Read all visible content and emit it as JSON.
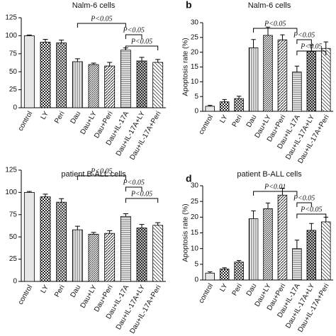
{
  "chart_data": [
    {
      "type": "bar",
      "title": "Nalm-6 cells",
      "categories": [
        "control",
        "LY",
        "Peri",
        "Dau",
        "Dau+LY",
        "Dau+Peri",
        "Dau+IL-17A",
        "Dau+IL-17A+LY",
        "Dau+IL-17A+Peri"
      ],
      "values": [
        100,
        91,
        90,
        64,
        60,
        58,
        80,
        65,
        63
      ],
      "errors": [
        1,
        4,
        4,
        4,
        2,
        5,
        3,
        5,
        4
      ],
      "ylim": [
        0,
        125
      ],
      "yticks": [
        0,
        25,
        50,
        75,
        100,
        125
      ],
      "annotations": [
        "P<0.05",
        "P<0.05",
        "P<0.05"
      ]
    },
    {
      "type": "bar",
      "title": "Nalm-6 cells",
      "panel": "b",
      "ylabel": "Apoptosis rate (%)",
      "categories": [
        "control",
        "LY",
        "Peri",
        "Dau",
        "Dau+LY",
        "Dau+Peri",
        "Dau+IL-17A",
        "Dau+IL-17A+LY",
        "Dau+IL-17A+Peri"
      ],
      "values": [
        1.7,
        3.2,
        4.3,
        21.5,
        25.7,
        24.2,
        13.3,
        20.3,
        21.3
      ],
      "errors": [
        0.3,
        0.8,
        0.8,
        2.8,
        2.8,
        1.7,
        2,
        2.2,
        2.2
      ],
      "ylim": [
        0,
        30
      ],
      "yticks": [
        0,
        5,
        10,
        15,
        20,
        25,
        30
      ],
      "annotations": [
        "P<0.05",
        "P<0.05",
        "P<0.05"
      ]
    },
    {
      "type": "bar",
      "title": "patient B-ALL cells",
      "categories": [
        "control",
        "LY",
        "Peri",
        "Dau",
        "Dau+LY",
        "Dau+Peri",
        "Dau+IL-17A",
        "Dau+IL-17A+LY",
        "Dau+IL-17A+Peri"
      ],
      "values": [
        100,
        95,
        89,
        58,
        53,
        54,
        73,
        60,
        63
      ],
      "errors": [
        1,
        3,
        4,
        4,
        2,
        3,
        3,
        4,
        3
      ],
      "ylim": [
        0,
        125
      ],
      "yticks": [
        0,
        25,
        50,
        75,
        100,
        125
      ],
      "annotations": [
        "P<0.05",
        "P<0.05",
        "P<0.05"
      ]
    },
    {
      "type": "bar",
      "title": "patient B-ALL cells",
      "panel": "d",
      "ylabel": "Apoptosis rate (%)",
      "categories": [
        "control",
        "LY",
        "Peri",
        "Dau",
        "Dau+LY",
        "Dau+Peri",
        "Dau+IL-17A",
        "Dau+IL-17A+LY",
        "Dau+IL-17A+Peri"
      ],
      "values": [
        2.2,
        3.5,
        5.7,
        19.5,
        22.7,
        27,
        10,
        15.8,
        18.5
      ],
      "errors": [
        0.4,
        0.4,
        0.5,
        2.5,
        1.8,
        2.2,
        2.7,
        2.2,
        1.5
      ],
      "ylim": [
        0,
        30
      ],
      "yticks": [
        0,
        5,
        10,
        15,
        20,
        25,
        30
      ],
      "annotations": [
        "P<0.01",
        "P<0.05",
        "P<0.05"
      ]
    }
  ]
}
